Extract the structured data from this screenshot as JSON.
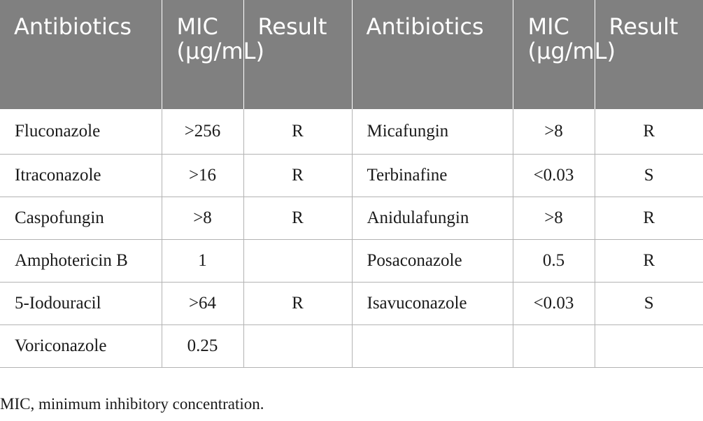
{
  "table": {
    "headers": [
      "Antibiotics",
      "MIC (μg/mL)",
      "Result",
      "Antibiotics",
      "MIC (μg/mL)",
      "Result"
    ],
    "rows": [
      [
        "Fluconazole",
        ">256",
        "R",
        "Micafungin",
        ">8",
        "R"
      ],
      [
        "Itraconazole",
        ">16",
        "R",
        "Terbinafine",
        "<0.03",
        "S"
      ],
      [
        "Caspofungin",
        ">8",
        "R",
        "Anidulafungin",
        ">8",
        "R"
      ],
      [
        "Amphotericin B",
        "1",
        "",
        "Posaconazole",
        "0.5",
        "R"
      ],
      [
        "5-Iodouracil",
        ">64",
        "R",
        "Isavuconazole",
        "<0.03",
        "S"
      ],
      [
        "Voriconazole",
        "0.25",
        "",
        "",
        "",
        ""
      ]
    ]
  },
  "footnote": "MIC, minimum inhibitory concentration.",
  "colors": {
    "header_bg": "#808080",
    "header_text": "#ffffff",
    "body_text": "#1a1a1a",
    "rule": "#b3b3b3"
  }
}
